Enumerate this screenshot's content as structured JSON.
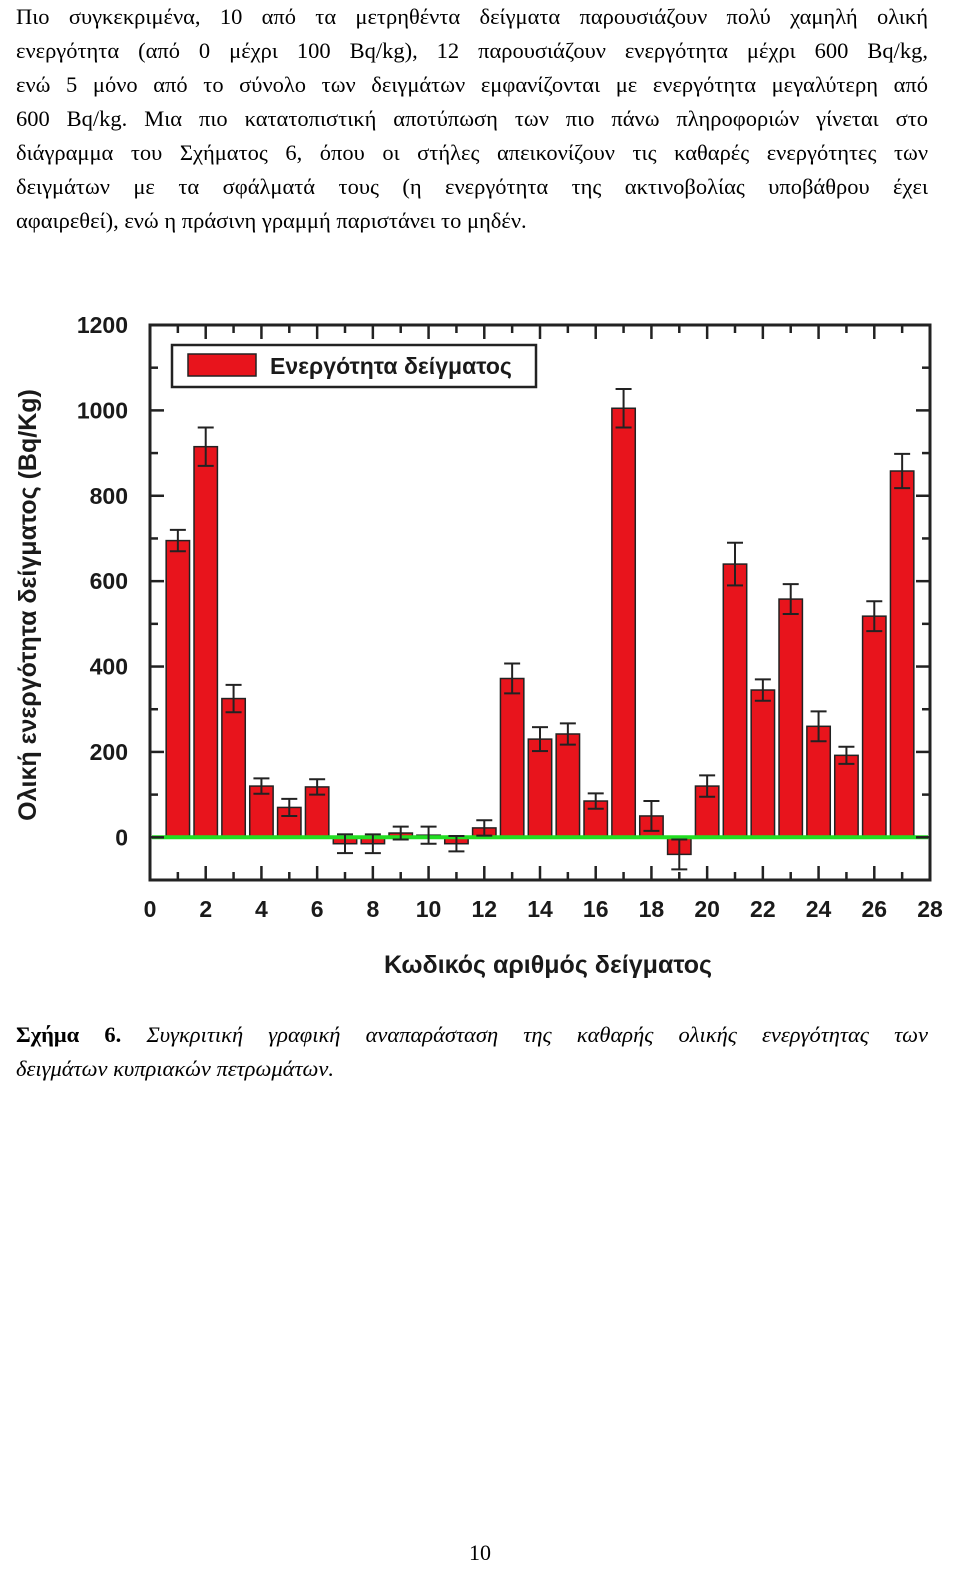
{
  "paragraph": {
    "lines": [
      "Πιο συγκεκριμένα, 10 από τα μετρηθέντα δείγματα παρουσιάζουν πολύ χαμηλή ολική",
      "ενεργότητα (από 0 μέχρι 100 Bq/kg), 12 παρουσιάζουν ενεργότητα μέχρι 600 Bq/kg,",
      "ενώ 5 μόνο από το σύνολο των δειγμάτων εμφανίζονται με ενεργότητα μεγαλύτερη από",
      "600 Bq/kg. Μια πιο κατατοπιστική αποτύπωση των πιο πάνω πληροφοριών γίνεται στο",
      "διάγραμμα του Σχήματος 6, όπου οι στήλες απεικονίζουν τις καθαρές ενεργότητες των",
      "δειγμάτων με τα σφάλματά τους (η ενεργότητα της ακτινοβολίας υποβάθρου έχει",
      "αφαιρεθεί), ενώ η πράσινη γραμμή παριστάνει το μηδέν."
    ]
  },
  "chart_data": {
    "type": "bar",
    "xlabel": "Κωδικός αριθμός δείγματος",
    "ylabel": "Ολική ενεργότητα δείγματος (Bq/Kg)",
    "legend": {
      "label": "Ενεργότητα δείγματος",
      "placement": "top-left"
    },
    "xlim": [
      0,
      28
    ],
    "ylim": [
      -100,
      1200
    ],
    "x_ticks": [
      0,
      2,
      4,
      6,
      8,
      10,
      12,
      14,
      16,
      18,
      20,
      22,
      24,
      26,
      28
    ],
    "y_ticks": [
      0,
      200,
      400,
      600,
      800,
      1000,
      1200
    ],
    "grid": false,
    "zero_line": true,
    "colors": {
      "bar": "#e8141c",
      "bar_edge": "#222222",
      "zero_line": "#22dd22",
      "error_bar": "#222222"
    },
    "series": [
      {
        "name": "Ενεργότητα δείγματος",
        "x": [
          1,
          2,
          3,
          4,
          5,
          6,
          7,
          8,
          9,
          10,
          11,
          12,
          13,
          14,
          15,
          16,
          17,
          18,
          19,
          20,
          21,
          22,
          23,
          24,
          25,
          26,
          27
        ],
        "values": [
          695,
          915,
          325,
          120,
          70,
          118,
          -15,
          -15,
          10,
          5,
          -15,
          22,
          372,
          230,
          242,
          85,
          1005,
          50,
          -40,
          120,
          640,
          345,
          558,
          260,
          192,
          518,
          858
        ],
        "errors": [
          25,
          45,
          32,
          18,
          20,
          18,
          22,
          22,
          15,
          20,
          18,
          18,
          35,
          28,
          25,
          18,
          45,
          35,
          35,
          25,
          50,
          25,
          35,
          35,
          20,
          35,
          40
        ]
      }
    ]
  },
  "caption": {
    "label": "Σχήμα 6.",
    "line1": "Συγκριτική γραφική αναπαράσταση της καθαρής ολικής ενεργότητας των",
    "line2": "δειγμάτων κυπριακών πετρωμάτων."
  },
  "page_number": "10"
}
